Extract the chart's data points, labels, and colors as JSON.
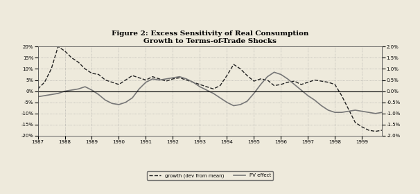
{
  "title": "Figure 2: Excess Sensitivity of Real Consumption\nGrowth to Terms-of-Trade Shocks",
  "background_color": "#eeeadc",
  "growth_color": "#222222",
  "pv_color": "#777777",
  "legend_labels": [
    "growth (dev from mean)",
    "PV effect"
  ],
  "ylim": [
    -0.2,
    0.2
  ],
  "yticks": [
    -0.2,
    -0.15,
    -0.1,
    -0.05,
    0.0,
    0.05,
    0.1,
    0.15,
    0.2
  ],
  "yticks_right": [
    -2.0,
    -1.5,
    -1.0,
    -0.5,
    0.0,
    0.5,
    1.0,
    1.5,
    2.0
  ],
  "xlabel_years": [
    1987,
    1988,
    1989,
    1990,
    1991,
    1992,
    1993,
    1994,
    1995,
    1996,
    1997,
    1998,
    1999
  ],
  "years_fine": [
    1987.0,
    1987.25,
    1987.5,
    1987.75,
    1988.0,
    1988.25,
    1988.5,
    1988.75,
    1989.0,
    1989.25,
    1989.5,
    1989.75,
    1990.0,
    1990.25,
    1990.5,
    1990.75,
    1991.0,
    1991.25,
    1991.5,
    1991.75,
    1992.0,
    1992.25,
    1992.5,
    1992.75,
    1993.0,
    1993.25,
    1993.5,
    1993.75,
    1994.0,
    1994.25,
    1994.5,
    1994.75,
    1995.0,
    1995.25,
    1995.5,
    1995.75,
    1996.0,
    1996.25,
    1996.5,
    1996.75,
    1997.0,
    1997.25,
    1997.5,
    1997.75,
    1998.0,
    1998.25,
    1998.5,
    1998.75,
    1999.0,
    1999.25,
    1999.5,
    1999.75
  ],
  "growth_vals": [
    0.01,
    0.04,
    0.1,
    0.2,
    0.18,
    0.15,
    0.13,
    0.1,
    0.08,
    0.075,
    0.05,
    0.04,
    0.03,
    0.05,
    0.07,
    0.06,
    0.05,
    0.065,
    0.055,
    0.045,
    0.055,
    0.06,
    0.05,
    0.04,
    0.03,
    0.02,
    0.01,
    0.025,
    0.07,
    0.12,
    0.1,
    0.07,
    0.045,
    0.055,
    0.05,
    0.025,
    0.03,
    0.04,
    0.045,
    0.03,
    0.04,
    0.05,
    0.045,
    0.04,
    0.03,
    -0.02,
    -0.08,
    -0.14,
    -0.16,
    -0.175,
    -0.18,
    -0.175
  ],
  "pv_vals": [
    -0.025,
    -0.02,
    -0.015,
    -0.01,
    0.0,
    0.005,
    0.01,
    0.02,
    0.005,
    -0.015,
    -0.04,
    -0.055,
    -0.06,
    -0.05,
    -0.03,
    0.01,
    0.04,
    0.055,
    0.05,
    0.055,
    0.06,
    0.065,
    0.055,
    0.04,
    0.02,
    0.005,
    -0.01,
    -0.03,
    -0.05,
    -0.065,
    -0.06,
    -0.045,
    -0.01,
    0.03,
    0.065,
    0.085,
    0.075,
    0.055,
    0.03,
    0.005,
    -0.02,
    -0.04,
    -0.065,
    -0.085,
    -0.095,
    -0.095,
    -0.09,
    -0.085,
    -0.09,
    -0.095,
    -0.1,
    -0.095
  ]
}
